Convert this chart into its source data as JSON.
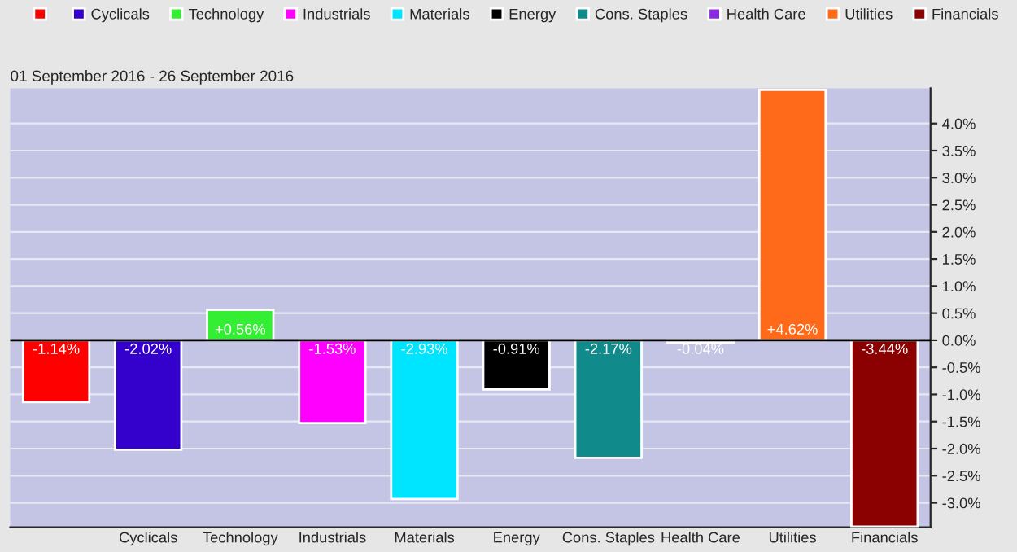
{
  "chart_data": {
    "type": "bar",
    "subtitle": "01 September 2016 - 26 September 2016",
    "categories": [
      null,
      "Cyclicals",
      "Technology",
      "Industrials",
      "Materials",
      "Energy",
      "Cons. Staples",
      "Health Care",
      "Utilities",
      "Financials"
    ],
    "series": [
      {
        "color": "#ff0000",
        "values": [
          -1.14,
          null,
          null,
          null,
          null,
          null,
          null,
          null,
          null,
          null
        ],
        "value_labels": [
          "-1.14%",
          null,
          null,
          null,
          null,
          null,
          null,
          null,
          null,
          null
        ]
      },
      {
        "name": "Cyclicals",
        "color": "#3300cc",
        "values": [
          null,
          -2.02,
          null,
          null,
          null,
          null,
          null,
          null,
          null,
          null
        ],
        "value_labels": [
          null,
          "-2.02%",
          null,
          null,
          null,
          null,
          null,
          null,
          null,
          null
        ]
      },
      {
        "name": "Technology",
        "color": "#33ee33",
        "values": [
          null,
          null,
          0.56,
          null,
          null,
          null,
          null,
          null,
          null,
          null
        ],
        "value_labels": [
          null,
          null,
          "+0.56%",
          null,
          null,
          null,
          null,
          null,
          null,
          null
        ]
      },
      {
        "name": "Industrials",
        "color": "#ff00ff",
        "values": [
          null,
          null,
          null,
          -1.53,
          null,
          null,
          null,
          null,
          null,
          null
        ],
        "value_labels": [
          null,
          null,
          null,
          "-1.53%",
          null,
          null,
          null,
          null,
          null,
          null
        ]
      },
      {
        "name": "Materials",
        "color": "#00e5ff",
        "values": [
          null,
          null,
          null,
          null,
          -2.93,
          null,
          null,
          null,
          null,
          null
        ],
        "value_labels": [
          null,
          null,
          null,
          null,
          "-2.93%",
          null,
          null,
          null,
          null,
          null
        ]
      },
      {
        "name": "Energy",
        "color": "#000000",
        "values": [
          null,
          null,
          null,
          null,
          null,
          -0.91,
          null,
          null,
          null,
          null
        ],
        "value_labels": [
          null,
          null,
          null,
          null,
          null,
          "-0.91%",
          null,
          null,
          null,
          null
        ]
      },
      {
        "name": "Cons. Staples",
        "color": "#108a8a",
        "values": [
          null,
          null,
          null,
          null,
          null,
          null,
          -2.17,
          null,
          null,
          null
        ],
        "value_labels": [
          null,
          null,
          null,
          null,
          null,
          null,
          "-2.17%",
          null,
          null,
          null
        ]
      },
      {
        "name": "Health Care",
        "color": "#8a2be2",
        "values": [
          null,
          null,
          null,
          null,
          null,
          null,
          null,
          -0.04,
          null,
          null
        ],
        "value_labels": [
          null,
          null,
          null,
          null,
          null,
          null,
          null,
          "-0.04%",
          null,
          null
        ]
      },
      {
        "name": "Utilities",
        "color": "#ff6a1a",
        "values": [
          null,
          null,
          null,
          null,
          null,
          null,
          null,
          null,
          4.62,
          null
        ],
        "value_labels": [
          null,
          null,
          null,
          null,
          null,
          null,
          null,
          null,
          "+4.62%",
          null
        ]
      },
      {
        "name": "Financials",
        "color": "#8b0000",
        "values": [
          null,
          null,
          null,
          null,
          null,
          null,
          null,
          null,
          null,
          -3.44
        ],
        "value_labels": [
          null,
          null,
          null,
          null,
          null,
          null,
          null,
          null,
          null,
          "-3.44%"
        ]
      }
    ],
    "ylim": [
      -3.45,
      4.65
    ],
    "yticks": [
      {
        "value": -3.0,
        "label": "-3.0%"
      },
      {
        "value": -2.5,
        "label": "-2.5%"
      },
      {
        "value": -2.0,
        "label": "-2.0%"
      },
      {
        "value": -1.5,
        "label": "-1.5%"
      },
      {
        "value": -1.0,
        "label": "-1.0%"
      },
      {
        "value": -0.5,
        "label": "-0.5%"
      },
      {
        "value": 0.0,
        "label": "0.0%"
      },
      {
        "value": 0.5,
        "label": "0.5%"
      },
      {
        "value": 1.0,
        "label": "1.0%"
      },
      {
        "value": 1.5,
        "label": "1.5%"
      },
      {
        "value": 2.0,
        "label": "2.0%"
      },
      {
        "value": 2.5,
        "label": "2.5%"
      },
      {
        "value": 3.0,
        "label": "3.0%"
      },
      {
        "value": 3.5,
        "label": "3.5%"
      },
      {
        "value": 4.0,
        "label": "4.0%"
      }
    ],
    "grid": "y",
    "legend": "top"
  }
}
